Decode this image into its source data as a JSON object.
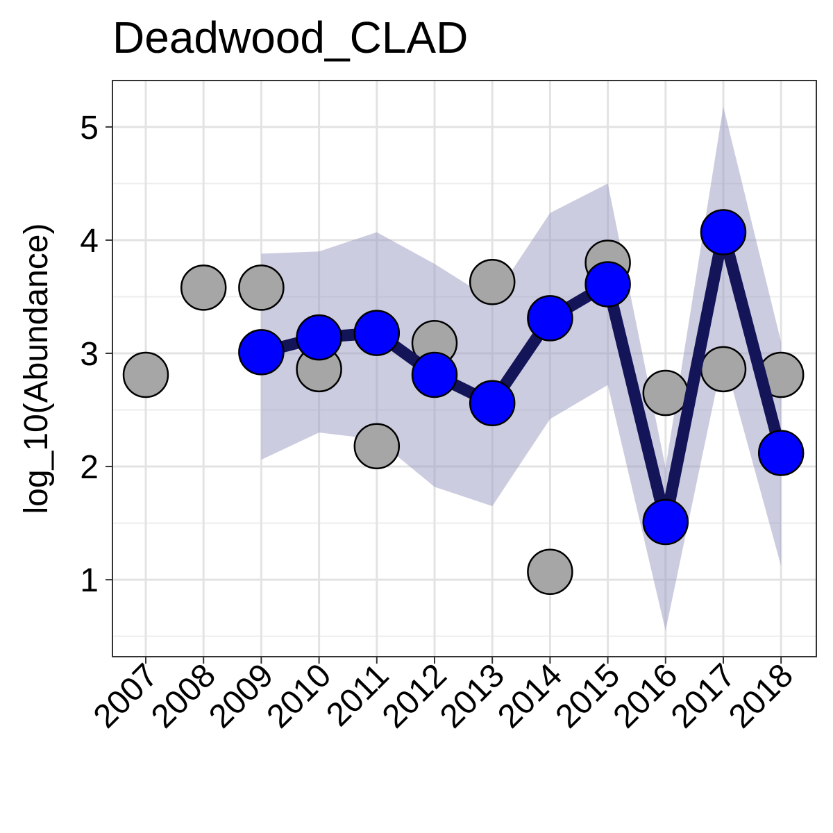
{
  "chart_data": {
    "type": "line",
    "title": "Deadwood_CLAD",
    "xlabel": "",
    "ylabel": "log_10(Abundance)",
    "categories": [
      "2007",
      "2008",
      "2009",
      "2010",
      "2011",
      "2012",
      "2013",
      "2014",
      "2015",
      "2016",
      "2017",
      "2018"
    ],
    "ylim": [
      0.32,
      5.41
    ],
    "yticks": [
      1,
      2,
      3,
      4,
      5
    ],
    "grid": true,
    "legend": "none",
    "series": [
      {
        "kind": "observed",
        "color": "#a6a6a6",
        "points": [
          [
            "2007",
            2.81
          ],
          [
            "2008",
            3.58
          ],
          [
            "2009",
            3.58
          ],
          [
            "2010",
            2.86
          ],
          [
            "2011",
            2.18
          ],
          [
            "2012",
            3.09
          ],
          [
            "2013",
            3.63
          ],
          [
            "2014",
            1.07
          ],
          [
            "2015",
            3.8
          ],
          [
            "2016",
            2.65
          ],
          [
            "2017",
            2.86
          ],
          [
            "2018",
            2.81
          ]
        ]
      },
      {
        "kind": "estimated",
        "color": "#0000ff",
        "line_color": "#141459",
        "points": [
          [
            "2009",
            3.01
          ],
          [
            "2010",
            3.14
          ],
          [
            "2011",
            3.18
          ],
          [
            "2012",
            2.81
          ],
          [
            "2013",
            2.56
          ],
          [
            "2014",
            3.31
          ],
          [
            "2015",
            3.61
          ],
          [
            "2016",
            1.51
          ],
          [
            "2017",
            4.07
          ],
          [
            "2018",
            2.12
          ]
        ],
        "ci_color": "#9a9ac2",
        "ci_upper": [
          3.88,
          3.9,
          4.07,
          3.79,
          3.47,
          4.24,
          4.5,
          1.99,
          5.18,
          3.1
        ],
        "ci_lower": [
          2.06,
          2.3,
          2.24,
          1.82,
          1.65,
          2.42,
          2.72,
          0.55,
          2.98,
          1.12
        ]
      }
    ]
  }
}
